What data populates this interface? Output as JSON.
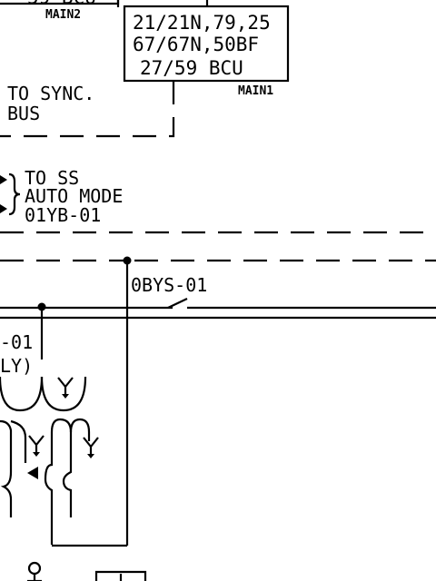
{
  "relay_box": {
    "line1": "21/21N,79,25",
    "line2": "67/67N,50BF",
    "line3": "27/59 BCU",
    "tag": "MAIN1"
  },
  "relay_box_left": {
    "partial_text": "59 BCU",
    "tag": "MAIN2"
  },
  "sync_note": {
    "line1": "TO SYNC.",
    "line2": "BUS"
  },
  "ss_note": {
    "line1": "TO SS",
    "line2": "AUTO MODE",
    "line3": "01YB-01"
  },
  "switch_label": "0BYS-01",
  "partial_left": {
    "line1": "-01",
    "line2": "LY)"
  },
  "colors": {
    "ink": "#000000",
    "paper": "#ffffff"
  }
}
